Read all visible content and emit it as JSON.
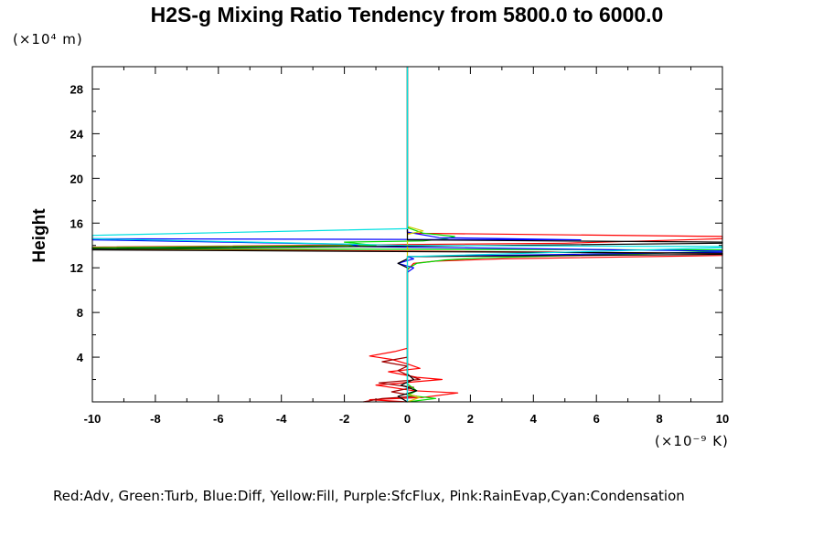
{
  "chart_data": {
    "type": "line",
    "title": "H2S-g Mixing Ratio Tendency from 5800.0 to 6000.0",
    "ylabel": "Height",
    "y_unit": "(×10⁴ m)",
    "x_unit": "(×10⁻⁹ K)",
    "xlim": [
      -10,
      10
    ],
    "ylim": [
      0,
      30
    ],
    "x_ticks": [
      -10,
      -8,
      -6,
      -4,
      -2,
      0,
      2,
      4,
      6,
      8,
      10
    ],
    "y_ticks": [
      4,
      8,
      12,
      16,
      20,
      24,
      28
    ],
    "legend_text": "Red:Adv, Green:Turb, Blue:Diff, Yellow:Fill, Purple:SfcFlux, Pink:RainEvap,Cyan:Condensation",
    "colors": {
      "red": "#ff0000",
      "darkred": "#a00000",
      "green": "#00dd00",
      "blue": "#0000ff",
      "yellow": "#cccc00",
      "cyan": "#00e0e0",
      "black": "#000000"
    },
    "series": [
      {
        "color": "red",
        "points": [
          [
            0,
            0.0
          ],
          [
            -1.2,
            0.2
          ],
          [
            0.5,
            0.4
          ],
          [
            1.6,
            0.8
          ],
          [
            0.2,
            1.0
          ],
          [
            -1.0,
            1.5
          ],
          [
            1.1,
            2.0
          ],
          [
            0.3,
            2.2
          ],
          [
            -0.6,
            2.7
          ],
          [
            0.4,
            3.0
          ],
          [
            0,
            3.4
          ],
          [
            -0.5,
            3.8
          ],
          [
            -1.2,
            4.1
          ],
          [
            -0.4,
            4.5
          ],
          [
            0,
            4.8
          ],
          [
            0,
            11.8
          ],
          [
            0.2,
            12.4
          ],
          [
            0.9,
            12.6
          ],
          [
            3.0,
            12.8
          ],
          [
            10,
            13.1
          ],
          [
            10,
            13.3
          ],
          [
            0,
            13.5
          ],
          [
            -10,
            13.7
          ],
          [
            -10,
            13.85
          ],
          [
            5,
            14.2
          ],
          [
            10,
            14.6
          ],
          [
            10,
            14.8
          ],
          [
            0,
            15.1
          ],
          [
            0,
            30
          ]
        ]
      },
      {
        "color": "darkred",
        "points": [
          [
            -1.4,
            0.0
          ],
          [
            -0.8,
            0.3
          ],
          [
            0.3,
            0.5
          ],
          [
            -0.5,
            0.9
          ],
          [
            0.2,
            1.3
          ],
          [
            -0.9,
            1.7
          ],
          [
            0.4,
            2.0
          ],
          [
            0,
            2.4
          ],
          [
            -0.3,
            2.8
          ],
          [
            0,
            3.2
          ],
          [
            -0.8,
            3.6
          ],
          [
            0,
            4.0
          ]
        ]
      },
      {
        "color": "green",
        "points": [
          [
            0,
            0.0
          ],
          [
            0.9,
            0.3
          ],
          [
            0,
            0.6
          ],
          [
            0.3,
            1.0
          ],
          [
            0,
            1.6
          ],
          [
            0,
            4.8
          ],
          [
            0,
            11.9
          ],
          [
            0.3,
            12.4
          ],
          [
            1.2,
            12.7
          ],
          [
            2.5,
            12.9
          ],
          [
            8,
            13.3
          ],
          [
            10,
            13.5
          ],
          [
            10,
            13.6
          ],
          [
            -10,
            13.7
          ],
          [
            -10,
            13.8
          ],
          [
            -1.0,
            14.0
          ],
          [
            -2,
            14.3
          ],
          [
            0.5,
            14.4
          ],
          [
            1.2,
            14.6
          ],
          [
            1.5,
            14.8
          ],
          [
            0.5,
            15.1
          ],
          [
            0,
            15.6
          ],
          [
            0,
            30
          ]
        ]
      },
      {
        "color": "blue",
        "points": [
          [
            0,
            0.0
          ],
          [
            0,
            11.6
          ],
          [
            0.2,
            12.0
          ],
          [
            -0.3,
            12.4
          ],
          [
            0.2,
            12.8
          ],
          [
            0,
            13.0
          ],
          [
            10,
            13.4
          ],
          [
            10,
            13.5
          ],
          [
            -1.5,
            13.9
          ],
          [
            -1.8,
            14.1
          ],
          [
            -10,
            14.5
          ],
          [
            -10,
            14.6
          ],
          [
            5.5,
            14.5
          ],
          [
            1.0,
            14.7
          ],
          [
            0,
            15.2
          ],
          [
            0,
            30
          ]
        ]
      },
      {
        "color": "yellow",
        "points": [
          [
            0,
            0.0
          ],
          [
            0.4,
            0.4
          ],
          [
            0,
            0.7
          ],
          [
            0,
            15.0
          ],
          [
            0.5,
            15.3
          ],
          [
            0,
            15.7
          ],
          [
            0,
            30
          ]
        ]
      },
      {
        "color": "black",
        "points": [
          [
            0,
            0.0
          ],
          [
            -0.3,
            0.5
          ],
          [
            0.3,
            1.0
          ],
          [
            -0.2,
            1.5
          ],
          [
            0.2,
            2.0
          ],
          [
            0,
            2.5
          ],
          [
            0,
            12.0
          ],
          [
            -0.3,
            12.4
          ],
          [
            0,
            12.8
          ],
          [
            0,
            13.0
          ],
          [
            10,
            13.2
          ],
          [
            10,
            13.3
          ],
          [
            -10,
            13.6
          ],
          [
            -10,
            13.7
          ],
          [
            3,
            14.0
          ],
          [
            10,
            14.2
          ],
          [
            10,
            14.3
          ],
          [
            0,
            14.5
          ],
          [
            0,
            30
          ]
        ]
      },
      {
        "color": "cyan",
        "points": [
          [
            0,
            0.0
          ],
          [
            0,
            13.0
          ],
          [
            10,
            13.8
          ],
          [
            10,
            13.9
          ],
          [
            0,
            14.0
          ],
          [
            -10,
            14.6
          ],
          [
            -10,
            14.9
          ],
          [
            0,
            15.5
          ],
          [
            0,
            30
          ]
        ]
      }
    ]
  }
}
